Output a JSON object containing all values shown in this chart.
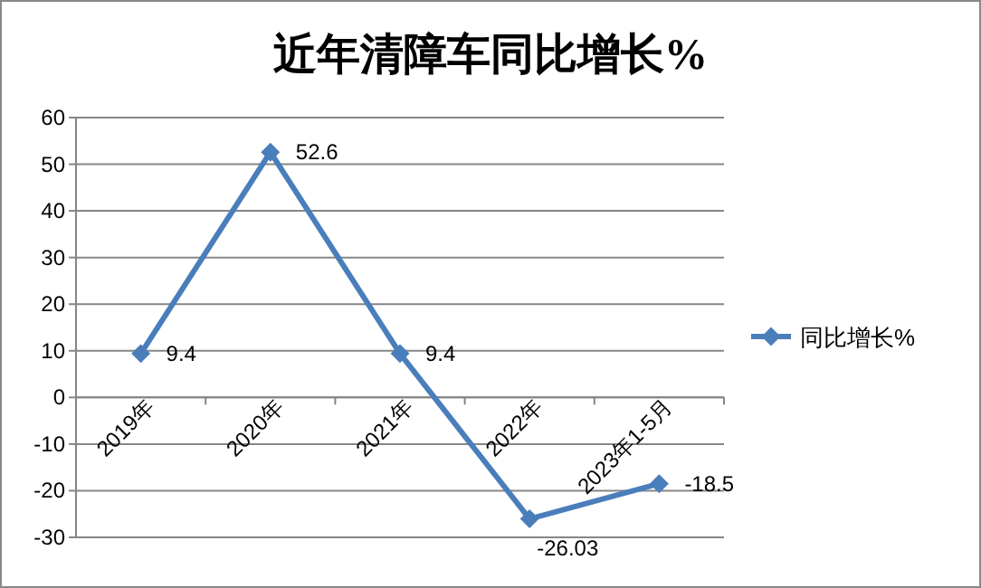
{
  "chart_data": {
    "type": "line",
    "title": "近年清障车同比增长%",
    "categories": [
      "2019年",
      "2020年",
      "2021年",
      "2022年",
      "2023年1-5月"
    ],
    "series": [
      {
        "name": "同比增长%",
        "color": "#4a7ebb",
        "values": [
          9.4,
          52.6,
          9.4,
          -26.03,
          -18.5
        ]
      }
    ],
    "ylim": [
      -30,
      60
    ],
    "yticks": [
      -30,
      -20,
      -10,
      0,
      10,
      20,
      30,
      40,
      50,
      60
    ],
    "grid": "y",
    "legend": "right",
    "marker": "diamond",
    "line_style": "solid",
    "data_labels": true
  }
}
